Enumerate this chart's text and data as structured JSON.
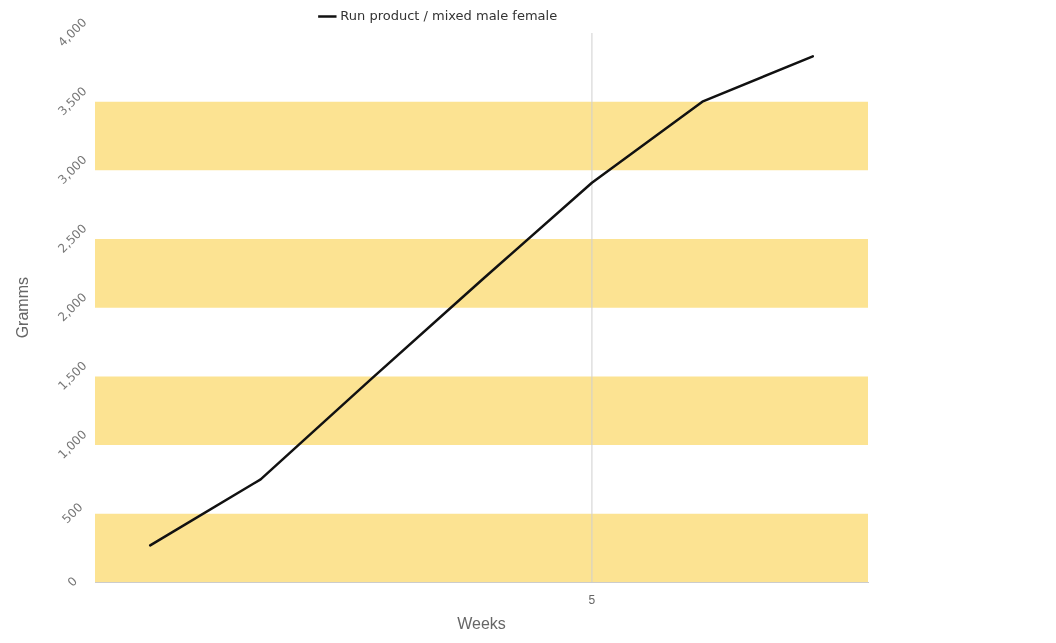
{
  "chart_data": {
    "type": "line",
    "xlabel": "Weeks",
    "ylabel": "Gramms",
    "categories": [
      null,
      null,
      null,
      null,
      "5",
      null,
      null
    ],
    "series": [
      {
        "name": "Run product / mixed male female",
        "color": "#111111",
        "values": [
          270,
          750,
          1480,
          2200,
          2910,
          3500,
          3830
        ]
      }
    ],
    "ylim": [
      0,
      4000
    ],
    "yticks": [
      {
        "value": 0,
        "label": "0"
      },
      {
        "value": 500,
        "label": "500"
      },
      {
        "value": 1000,
        "label": "1,000"
      },
      {
        "value": 1500,
        "label": "1,500"
      },
      {
        "value": 2000,
        "label": "2,000"
      },
      {
        "value": 2500,
        "label": "2,500"
      },
      {
        "value": 3000,
        "label": "3,000"
      },
      {
        "value": 3500,
        "label": "3,500"
      },
      {
        "value": 4000,
        "label": "4,000"
      }
    ],
    "bands": [
      {
        "axis": "y",
        "from": 0,
        "to": 500,
        "color": "#fce392"
      },
      {
        "axis": "y",
        "from": 1000,
        "to": 1500,
        "color": "#fce392"
      },
      {
        "axis": "y",
        "from": 2000,
        "to": 2500,
        "color": "#fce392"
      },
      {
        "axis": "y",
        "from": 3000,
        "to": 3500,
        "color": "#fce392"
      }
    ],
    "ref_lines": [
      {
        "axis": "x",
        "value": "5",
        "color": "#cfcfcf"
      }
    ],
    "legend": "top",
    "marker": "none",
    "line_style": "solid"
  }
}
